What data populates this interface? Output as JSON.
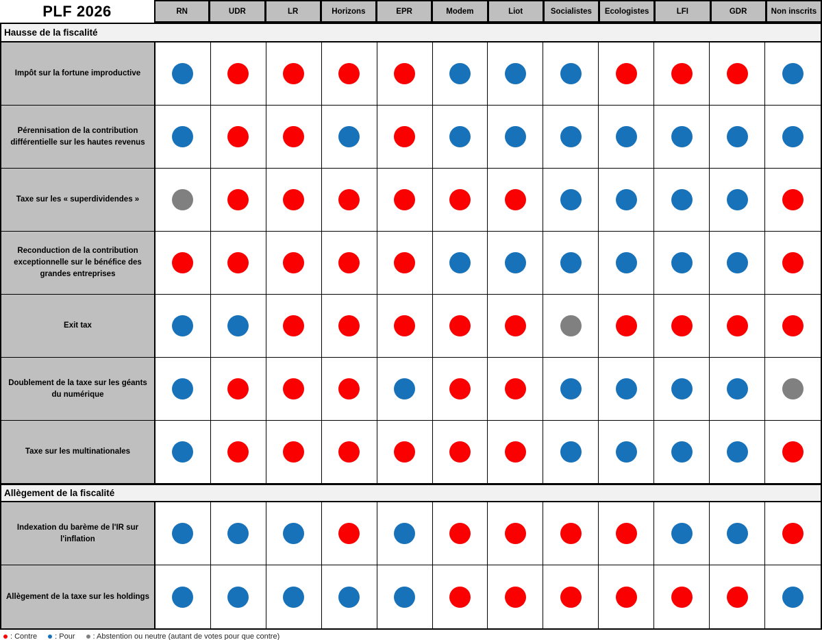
{
  "title": "PLF 2026",
  "chart_data": {
    "type": "table",
    "title": "PLF 2026",
    "columns": [
      "RN",
      "UDR",
      "LR",
      "Horizons",
      "EPR",
      "Modem",
      "Liot",
      "Socialistes",
      "Ecologistes",
      "LFI",
      "GDR",
      "Non inscrits"
    ],
    "vote_colors": {
      "pour": "#1772b9",
      "contre": "#fb0000",
      "abstention": "#808080"
    },
    "sections": [
      {
        "label": "Hausse de la fiscalité",
        "rows": [
          {
            "label": "Impôt sur la fortune improductive",
            "votes": [
              "pour",
              "contre",
              "contre",
              "contre",
              "contre",
              "pour",
              "pour",
              "pour",
              "contre",
              "contre",
              "contre",
              "pour"
            ]
          },
          {
            "label": "Pérennisation de la contribution différentielle sur les hautes revenus",
            "votes": [
              "pour",
              "contre",
              "contre",
              "pour",
              "contre",
              "pour",
              "pour",
              "pour",
              "pour",
              "pour",
              "pour",
              "pour"
            ]
          },
          {
            "label": "Taxe sur les « superdividendes »",
            "votes": [
              "abstention",
              "contre",
              "contre",
              "contre",
              "contre",
              "contre",
              "contre",
              "pour",
              "pour",
              "pour",
              "pour",
              "contre"
            ]
          },
          {
            "label": "Reconduction de la contribution exceptionnelle sur le bénéfice des grandes entreprises",
            "votes": [
              "contre",
              "contre",
              "contre",
              "contre",
              "contre",
              "pour",
              "pour",
              "pour",
              "pour",
              "pour",
              "pour",
              "contre"
            ]
          },
          {
            "label": "Exit tax",
            "votes": [
              "pour",
              "pour",
              "contre",
              "contre",
              "contre",
              "contre",
              "contre",
              "abstention",
              "contre",
              "contre",
              "contre",
              "contre"
            ]
          },
          {
            "label": "Doublement de la taxe sur les géants du numérique",
            "votes": [
              "pour",
              "contre",
              "contre",
              "contre",
              "pour",
              "contre",
              "contre",
              "pour",
              "pour",
              "pour",
              "pour",
              "abstention"
            ]
          },
          {
            "label": "Taxe sur les multinationales",
            "votes": [
              "pour",
              "contre",
              "contre",
              "contre",
              "contre",
              "contre",
              "contre",
              "pour",
              "pour",
              "pour",
              "pour",
              "contre"
            ]
          }
        ]
      },
      {
        "label": "Allègement de la fiscalité",
        "rows": [
          {
            "label": "Indexation du barème de l'IR sur l'inflation",
            "votes": [
              "pour",
              "pour",
              "pour",
              "contre",
              "pour",
              "contre",
              "contre",
              "contre",
              "contre",
              "pour",
              "pour",
              "contre"
            ]
          },
          {
            "label": "Allègement de la taxe sur les holdings",
            "votes": [
              "pour",
              "pour",
              "pour",
              "pour",
              "pour",
              "contre",
              "contre",
              "contre",
              "contre",
              "contre",
              "contre",
              "pour"
            ]
          }
        ]
      }
    ],
    "legend": [
      {
        "vote": "contre",
        "label": "Contre"
      },
      {
        "vote": "pour",
        "label": "Pour"
      },
      {
        "vote": "abstention",
        "label": "Abstention ou neutre (autant de votes pour que contre)"
      }
    ]
  }
}
